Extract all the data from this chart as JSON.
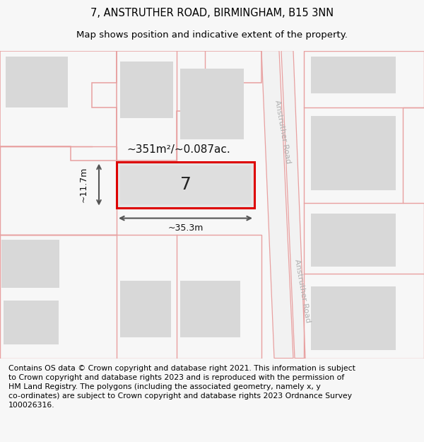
{
  "title_line1": "7, ANSTRUTHER ROAD, BIRMINGHAM, B15 3NN",
  "title_line2": "Map shows position and indicative extent of the property.",
  "area_label": "~351m²/~0.087ac.",
  "property_number": "7",
  "width_label": "~35.3m",
  "height_label": "~11.7m",
  "road_label_top": "Anstruther Road",
  "road_label_bottom": "Anstruther Road",
  "footer_text": "Contains OS data © Crown copyright and database right 2021. This information is subject\nto Crown copyright and database rights 2023 and is reproduced with the permission of\nHM Land Registry. The polygons (including the associated geometry, namely x, y\nco-ordinates) are subject to Crown copyright and database rights 2023 Ordnance Survey\n100026316.",
  "bg_color": "#f7f7f7",
  "map_bg": "#f8f8f8",
  "building_fill": "#d8d8d8",
  "boundary_color": "#e8a0a0",
  "highlight_color": "#dd0000",
  "title_fontsize": 10.5,
  "subtitle_fontsize": 9.5,
  "footer_fontsize": 7.8
}
